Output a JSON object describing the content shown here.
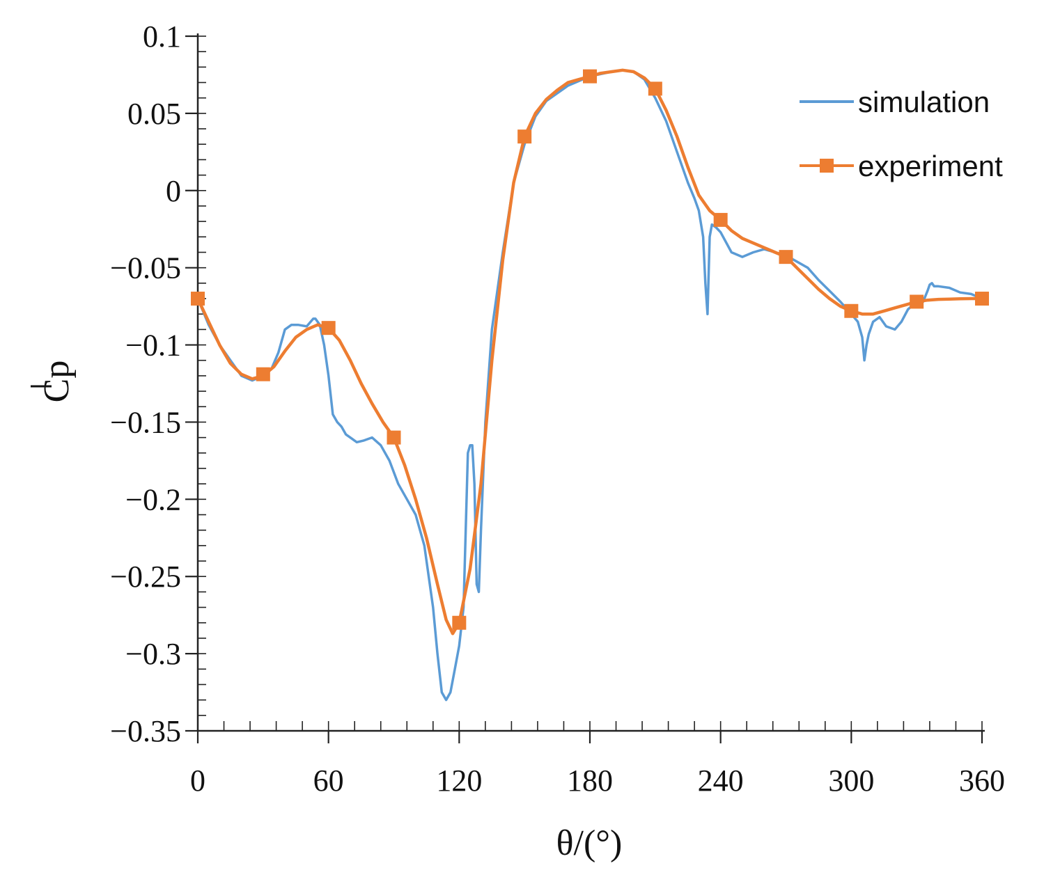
{
  "chart_data": {
    "type": "line",
    "title": "",
    "xlabel": "θ/(°)",
    "ylabel": "Cp",
    "ylabel_overbar": true,
    "xlim": [
      0,
      360
    ],
    "ylim": [
      -0.35,
      0.1
    ],
    "x_ticks": [
      0,
      60,
      120,
      180,
      240,
      300,
      360
    ],
    "x_tick_labels": [
      "0",
      "60",
      "120",
      "180",
      "240",
      "300",
      "360"
    ],
    "y_ticks": [
      0.1,
      0.05,
      0,
      -0.05,
      -0.1,
      -0.15,
      -0.2,
      -0.25,
      -0.3,
      -0.35
    ],
    "y_tick_labels": [
      "0.1",
      "0.05",
      "0",
      "−0.05",
      "−0.1",
      "−0.15",
      "−0.2",
      "−0.25",
      "−0.3",
      "−0.35"
    ],
    "grid": false,
    "legend_position": "top-right",
    "series": [
      {
        "name": "simulation",
        "color": "#5b9bd5",
        "marker": "none",
        "x": [
          0,
          5,
          10,
          15,
          20,
          25,
          30,
          34,
          37,
          40,
          43,
          46,
          50,
          53,
          54,
          56,
          58,
          60,
          62,
          64,
          66,
          68,
          70,
          73,
          76,
          80,
          84,
          88,
          92,
          96,
          100,
          104,
          108,
          110,
          112,
          114,
          116,
          118,
          120,
          122,
          124,
          125,
          126,
          127,
          128,
          129,
          130,
          132,
          135,
          140,
          145,
          150,
          155,
          160,
          170,
          180,
          190,
          195,
          200,
          205,
          210,
          215,
          220,
          225,
          228,
          230,
          232,
          233,
          234,
          235,
          236,
          238,
          240,
          245,
          250,
          255,
          260,
          265,
          270,
          275,
          280,
          285,
          290,
          295,
          300,
          303,
          305,
          306,
          307,
          308,
          310,
          313,
          316,
          320,
          323,
          326,
          330,
          333,
          335,
          336,
          337,
          338,
          340,
          345,
          350,
          355,
          360
        ],
        "y": [
          -0.07,
          -0.087,
          -0.1,
          -0.11,
          -0.12,
          -0.123,
          -0.12,
          -0.115,
          -0.105,
          -0.09,
          -0.087,
          -0.087,
          -0.088,
          -0.083,
          -0.083,
          -0.087,
          -0.1,
          -0.12,
          -0.145,
          -0.15,
          -0.153,
          -0.158,
          -0.16,
          -0.163,
          -0.162,
          -0.16,
          -0.165,
          -0.175,
          -0.19,
          -0.2,
          -0.21,
          -0.23,
          -0.27,
          -0.3,
          -0.325,
          -0.33,
          -0.325,
          -0.31,
          -0.295,
          -0.27,
          -0.17,
          -0.165,
          -0.165,
          -0.19,
          -0.255,
          -0.26,
          -0.22,
          -0.15,
          -0.09,
          -0.04,
          0.005,
          0.03,
          0.048,
          0.058,
          0.068,
          0.074,
          0.077,
          0.078,
          0.077,
          0.072,
          0.06,
          0.045,
          0.025,
          0.005,
          -0.005,
          -0.013,
          -0.03,
          -0.06,
          -0.08,
          -0.03,
          -0.022,
          -0.024,
          -0.027,
          -0.04,
          -0.043,
          -0.04,
          -0.038,
          -0.04,
          -0.042,
          -0.046,
          -0.05,
          -0.058,
          -0.065,
          -0.072,
          -0.08,
          -0.085,
          -0.095,
          -0.11,
          -0.1,
          -0.093,
          -0.085,
          -0.082,
          -0.088,
          -0.09,
          -0.085,
          -0.077,
          -0.072,
          -0.072,
          -0.065,
          -0.061,
          -0.06,
          -0.062,
          -0.062,
          -0.063,
          -0.066,
          -0.067,
          -0.07
        ]
      },
      {
        "name": "experiment",
        "color": "#ed7d31",
        "marker": "square",
        "x": [
          0,
          30,
          60,
          90,
          120,
          150,
          180,
          210,
          240,
          270,
          300,
          330,
          360
        ],
        "y": [
          -0.07,
          -0.119,
          -0.089,
          -0.16,
          -0.28,
          0.035,
          0.074,
          0.066,
          -0.019,
          -0.043,
          -0.078,
          -0.072,
          -0.07
        ],
        "curve_x": [
          0,
          5,
          10,
          15,
          20,
          25,
          30,
          35,
          40,
          45,
          50,
          55,
          60,
          65,
          70,
          75,
          80,
          85,
          90,
          95,
          100,
          105,
          110,
          114,
          117,
          120,
          125,
          130,
          135,
          140,
          145,
          150,
          155,
          160,
          165,
          170,
          175,
          180,
          185,
          190,
          195,
          200,
          205,
          210,
          215,
          220,
          225,
          230,
          235,
          240,
          245,
          250,
          255,
          260,
          265,
          270,
          275,
          280,
          285,
          290,
          295,
          300,
          305,
          310,
          315,
          320,
          325,
          330,
          335,
          340,
          345,
          350,
          355,
          360
        ],
        "curve_y": [
          -0.07,
          -0.085,
          -0.1,
          -0.112,
          -0.119,
          -0.122,
          -0.12,
          -0.114,
          -0.104,
          -0.095,
          -0.09,
          -0.087,
          -0.089,
          -0.097,
          -0.11,
          -0.125,
          -0.138,
          -0.15,
          -0.16,
          -0.178,
          -0.2,
          -0.225,
          -0.255,
          -0.278,
          -0.287,
          -0.28,
          -0.245,
          -0.19,
          -0.11,
          -0.045,
          0.005,
          0.035,
          0.05,
          0.059,
          0.065,
          0.07,
          0.072,
          0.074,
          0.076,
          0.077,
          0.078,
          0.077,
          0.073,
          0.066,
          0.052,
          0.035,
          0.015,
          -0.003,
          -0.013,
          -0.019,
          -0.026,
          -0.031,
          -0.034,
          -0.037,
          -0.04,
          -0.043,
          -0.05,
          -0.057,
          -0.064,
          -0.07,
          -0.075,
          -0.078,
          -0.08,
          -0.08,
          -0.078,
          -0.076,
          -0.074,
          -0.072,
          -0.071,
          -0.0705,
          -0.0703,
          -0.0701,
          -0.07,
          -0.07
        ]
      }
    ]
  }
}
